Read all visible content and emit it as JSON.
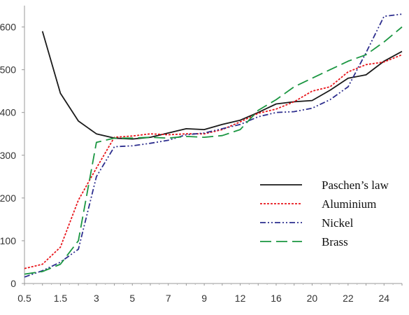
{
  "chart_data": {
    "type": "line",
    "title": "",
    "xlabel": "",
    "ylabel": "",
    "categories": [
      "0.5",
      "1",
      "1.5",
      "2",
      "3",
      "4",
      "5",
      "6",
      "7",
      "8",
      "9",
      "10",
      "12",
      "14",
      "16",
      "18",
      "20",
      "21",
      "22",
      "23",
      "24",
      "25"
    ],
    "ylim": [
      0,
      650
    ],
    "yticks": [
      0,
      100,
      200,
      300,
      400,
      500,
      600
    ],
    "xticks": [
      "0.5",
      "1.5",
      "3",
      "5",
      "7",
      "9",
      "12",
      "16",
      "20",
      "22",
      "24"
    ],
    "grid": false,
    "legend_position": "center-right",
    "series": [
      {
        "name": "Paschen’s law",
        "color": "#1a1a1a",
        "dash": "solid",
        "points": [
          [
            1,
            590
          ],
          [
            1.5,
            445
          ],
          [
            2,
            380
          ],
          [
            3,
            350
          ],
          [
            4,
            340
          ],
          [
            5,
            338
          ],
          [
            6,
            342
          ],
          [
            7,
            352
          ],
          [
            8,
            362
          ],
          [
            9,
            360
          ],
          [
            10,
            372
          ],
          [
            12,
            382
          ],
          [
            14,
            400
          ],
          [
            16,
            420
          ],
          [
            18,
            425
          ],
          [
            20,
            428
          ],
          [
            21,
            452
          ],
          [
            22,
            480
          ],
          [
            23,
            488
          ],
          [
            24,
            520
          ],
          [
            25,
            543
          ]
        ]
      },
      {
        "name": "Aluminium",
        "color": "#e8161c",
        "dash": "dotted",
        "points": [
          [
            0.5,
            35
          ],
          [
            1,
            45
          ],
          [
            1.5,
            85
          ],
          [
            2,
            195
          ],
          [
            3,
            270
          ],
          [
            4,
            342
          ],
          [
            5,
            345
          ],
          [
            6,
            350
          ],
          [
            7,
            348
          ],
          [
            8,
            350
          ],
          [
            9,
            350
          ],
          [
            10,
            360
          ],
          [
            12,
            378
          ],
          [
            14,
            398
          ],
          [
            16,
            408
          ],
          [
            18,
            425
          ],
          [
            20,
            450
          ],
          [
            21,
            460
          ],
          [
            22,
            495
          ],
          [
            23,
            512
          ],
          [
            24,
            518
          ],
          [
            25,
            535
          ]
        ]
      },
      {
        "name": "Nickel",
        "color": "#2d2e8e",
        "dash": "dashdotdot",
        "points": [
          [
            0.5,
            15
          ],
          [
            1,
            30
          ],
          [
            1.5,
            50
          ],
          [
            2,
            80
          ],
          [
            3,
            250
          ],
          [
            4,
            320
          ],
          [
            5,
            322
          ],
          [
            6,
            328
          ],
          [
            7,
            335
          ],
          [
            8,
            348
          ],
          [
            9,
            352
          ],
          [
            10,
            362
          ],
          [
            12,
            372
          ],
          [
            14,
            390
          ],
          [
            16,
            400
          ],
          [
            18,
            402
          ],
          [
            20,
            410
          ],
          [
            21,
            430
          ],
          [
            22,
            460
          ],
          [
            23,
            540
          ],
          [
            24,
            625
          ],
          [
            25,
            630
          ]
        ]
      },
      {
        "name": "Brass",
        "color": "#1a9641",
        "dash": "longdash",
        "points": [
          [
            0.5,
            22
          ],
          [
            1,
            28
          ],
          [
            1.5,
            45
          ],
          [
            2,
            100
          ],
          [
            3,
            330
          ],
          [
            4,
            340
          ],
          [
            5,
            340
          ],
          [
            6,
            342
          ],
          [
            7,
            340
          ],
          [
            8,
            344
          ],
          [
            9,
            342
          ],
          [
            10,
            346
          ],
          [
            12,
            360
          ],
          [
            14,
            405
          ],
          [
            16,
            430
          ],
          [
            18,
            460
          ],
          [
            20,
            480
          ],
          [
            21,
            500
          ],
          [
            22,
            520
          ],
          [
            23,
            535
          ],
          [
            24,
            565
          ],
          [
            25,
            600
          ]
        ]
      }
    ]
  }
}
